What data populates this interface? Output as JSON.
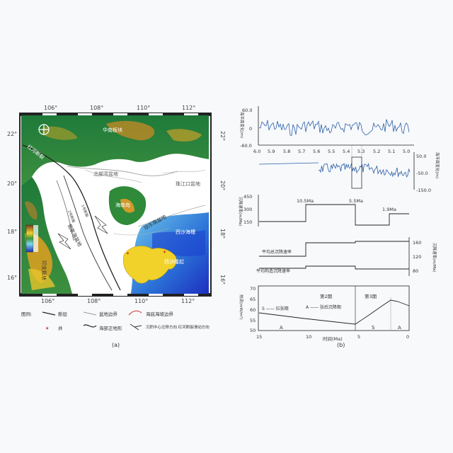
{
  "map": {
    "lon_ticks": [
      "106°",
      "108°",
      "110°",
      "112°"
    ],
    "lat_ticks": [
      "22°",
      "20°",
      "18°",
      "16°"
    ],
    "labels": {
      "south_china_block": "华南板块",
      "beibu_gulf_basin": "北部湾盆地",
      "pearl_river_mouth_basin": "珠江口盆地",
      "hainan_island": "海南岛",
      "yinggehai_basin": "莺歌海盆地",
      "qiongdongnan_basin": "琼东南盆地",
      "xisha_trough": "西沙海槽",
      "xisha_uplift": "西沙隆起",
      "indochina_block": "印支板块",
      "red_river_fault": "红河断裂",
      "fault_1": "1号断裂",
      "fault_2": "2号断裂"
    },
    "legend_title": "图例:",
    "legend_items": [
      "断层",
      "盆地边界",
      "海底海坡边界",
      "井",
      "海部正地形",
      "沉积中心迁移方向 红河断裂滑动方向"
    ],
    "caption": "(a)"
  },
  "panels": {
    "sea_level": {
      "y_ticks_top": [
        "60.0",
        "0",
        "-60.0"
      ],
      "y_ticks_bottom": [
        "50.0",
        "-50.0",
        "-150.0"
      ],
      "x_ticks": [
        "6.0",
        "5.9",
        "5.8",
        "5.7",
        "5.6",
        "5.5",
        "5.4",
        "5.3",
        "5.2",
        "5.1",
        "5.0"
      ],
      "left_label": "海平面变化(m)",
      "right_label": "海平面变化(m)"
    },
    "subsidence": {
      "y_ticks": [
        "450",
        "300",
        "150"
      ],
      "y_label": "沉降速率(m/Ma)",
      "events": [
        "10.5Ma",
        "5.5Ma",
        "1.9Ma"
      ]
    },
    "averages": {
      "y_ticks": [
        "160",
        "120",
        "80"
      ],
      "y_label": "沉降速率(m/Ma)",
      "total_label": "平均总沉降速率",
      "tectonic_label": "平均构造沉降速率"
    },
    "heat_flow": {
      "y_ticks": [
        "70",
        "65",
        "60",
        "55",
        "50"
      ],
      "y_label": "热流(mW/m²)",
      "phase2": "第2期",
      "phase3": "第3期",
      "s_legend": "S —— 拉张期",
      "a_legend": "A —— 张后沉降期",
      "s_mark": "S",
      "a_mark_left": "A",
      "a_mark_right": "A",
      "x_ticks": [
        "15",
        "10",
        "5",
        "0"
      ],
      "x_label": "时间(Ma)"
    },
    "caption": "(b)"
  }
}
